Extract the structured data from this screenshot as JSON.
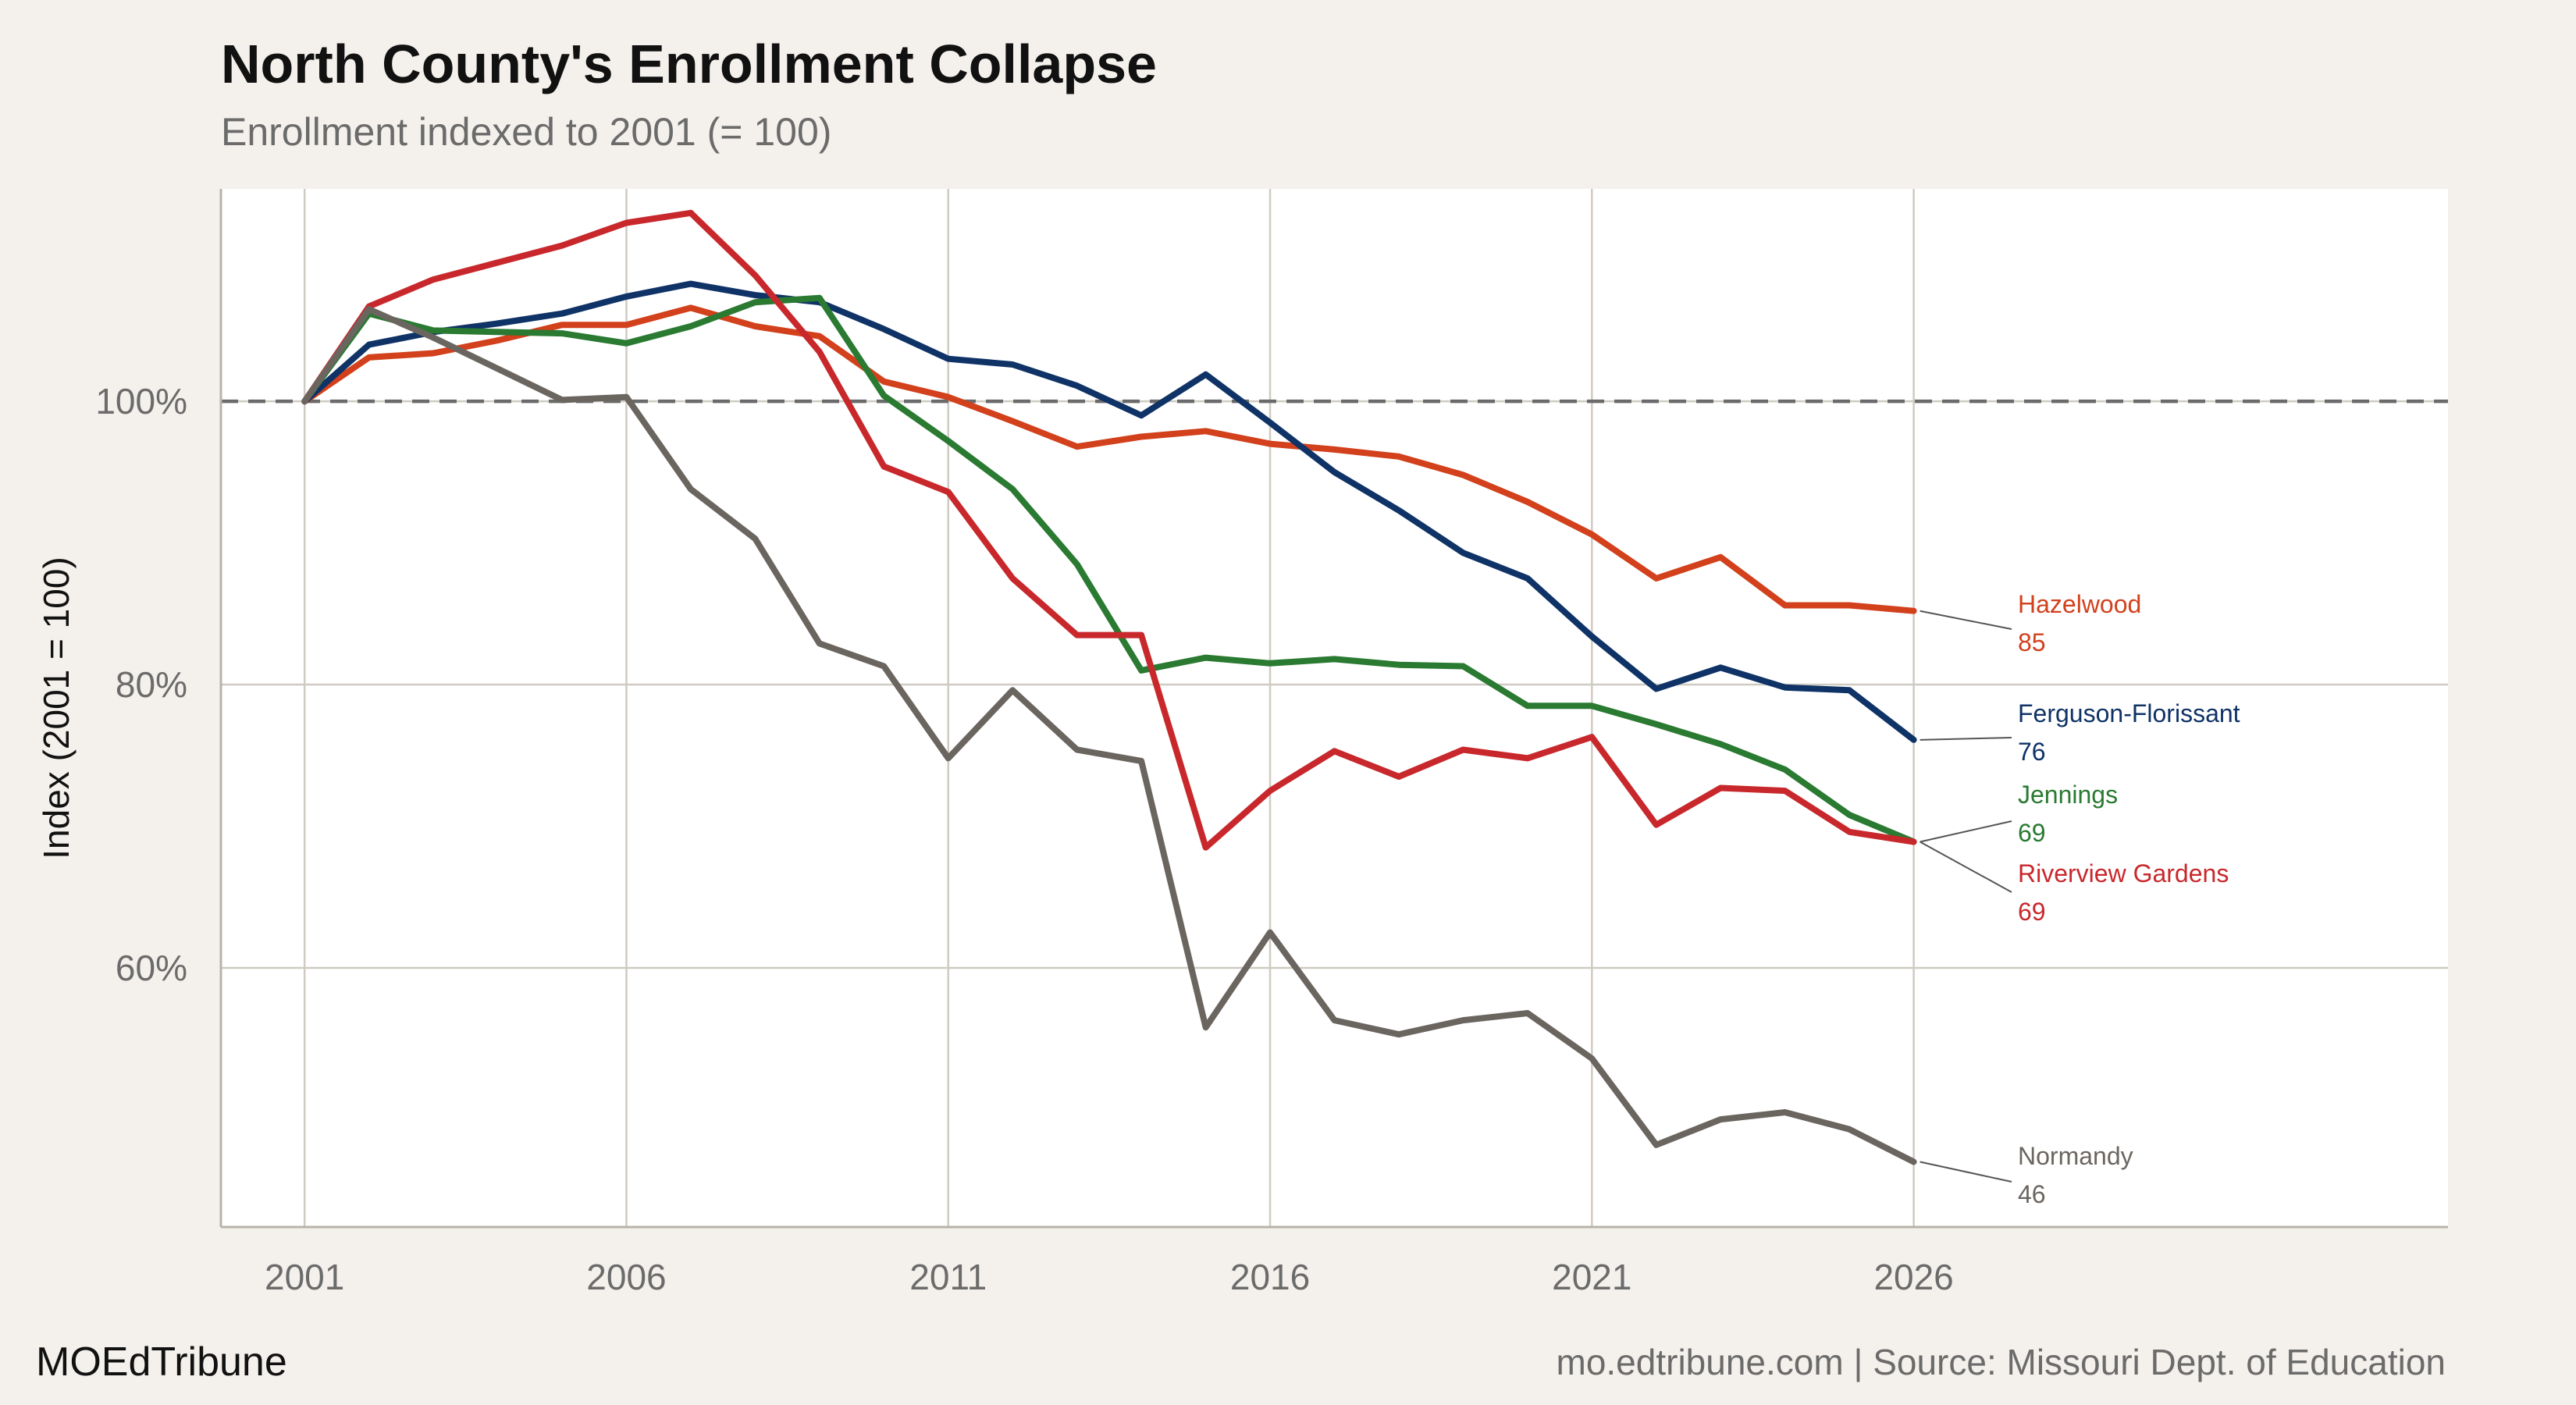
{
  "brand": "MOEdTribune",
  "source_note": "mo.edtribune.com | Source: Missouri Dept. of Education",
  "colors": {
    "background": "#f4f1ec",
    "panel": "#ffffff",
    "grid": "#cfcbc2",
    "axis_text": "#6b6b6b",
    "reference_line": "#6b6b6b"
  },
  "chart_data": {
    "type": "line",
    "title": "North County's Enrollment Collapse",
    "subtitle": "Enrollment indexed to 2001 (= 100)",
    "xlabel": "",
    "ylabel": "Index (2001 = 100)",
    "xlim": [
      1999.7,
      2034.3
    ],
    "ylim": [
      41.7,
      115
    ],
    "x_ticks": [
      2001,
      2006,
      2011,
      2016,
      2021,
      2026
    ],
    "x_tick_labels": [
      "2001",
      "2006",
      "2011",
      "2016",
      "2021",
      "2026"
    ],
    "y_ticks": [
      60,
      80,
      100
    ],
    "y_tick_labels": [
      "60%",
      "80%",
      "100%"
    ],
    "grid": true,
    "reference_line": {
      "y": 100,
      "style": "dashed"
    },
    "legend": "direct labels at right end of lines",
    "series": [
      {
        "name": "Hazelwood",
        "end_label": "85",
        "color": "#d2401c",
        "x": [
          2001,
          2002,
          2003,
          2004,
          2005,
          2006,
          2007,
          2008,
          2009,
          2010,
          2011,
          2012,
          2013,
          2014,
          2015,
          2016,
          2017,
          2018,
          2019,
          2020,
          2021,
          2022,
          2023,
          2024,
          2025,
          2026
        ],
        "values": [
          100,
          103.1,
          103.4,
          104.3,
          105.4,
          105.4,
          106.6,
          105.3,
          104.6,
          101.4,
          100.3,
          98.6,
          96.8,
          97.5,
          97.9,
          97.0,
          96.6,
          96.1,
          94.8,
          92.9,
          90.6,
          87.5,
          89.0,
          85.6,
          85.6,
          85.2
        ]
      },
      {
        "name": "Ferguson-Florissant",
        "end_label": "76",
        "color": "#0f3366",
        "x": [
          2001,
          2002,
          2003,
          2004,
          2005,
          2006,
          2007,
          2008,
          2009,
          2010,
          2011,
          2012,
          2013,
          2014,
          2015,
          2016,
          2017,
          2018,
          2019,
          2020,
          2021,
          2022,
          2023,
          2024,
          2025,
          2026
        ],
        "values": [
          100,
          104.0,
          104.9,
          105.5,
          106.2,
          107.4,
          108.3,
          107.5,
          107.0,
          105.1,
          103.0,
          102.6,
          101.1,
          99.0,
          101.9,
          98.5,
          95.0,
          92.3,
          89.3,
          87.5,
          83.4,
          79.7,
          81.2,
          79.8,
          79.6,
          76.1
        ]
      },
      {
        "name": "Jennings",
        "end_label": "69",
        "color": "#2a7a32",
        "x": [
          2001,
          2002,
          2003,
          2004,
          2005,
          2006,
          2007,
          2008,
          2009,
          2010,
          2011,
          2012,
          2013,
          2014,
          2015,
          2016,
          2017,
          2018,
          2019,
          2020,
          2021,
          2022,
          2023,
          2024,
          2025,
          2026
        ],
        "values": [
          100,
          106.2,
          105.0,
          104.9,
          104.8,
          104.1,
          105.3,
          107.0,
          107.3,
          100.4,
          97.2,
          93.8,
          88.5,
          81.0,
          81.9,
          81.5,
          81.8,
          81.4,
          81.3,
          78.5,
          78.5,
          77.2,
          75.8,
          74.0,
          70.8,
          68.9
        ]
      },
      {
        "name": "Riverview Gardens",
        "end_label": "69",
        "color": "#c8282c",
        "x": [
          2001,
          2002,
          2003,
          2004,
          2005,
          2006,
          2007,
          2008,
          2009,
          2010,
          2011,
          2012,
          2013,
          2014,
          2015,
          2016,
          2017,
          2018,
          2019,
          2020,
          2021,
          2022,
          2023,
          2024,
          2025,
          2026
        ],
        "values": [
          100,
          106.7,
          108.6,
          109.8,
          111.0,
          112.6,
          113.3,
          108.9,
          103.5,
          95.4,
          93.6,
          87.5,
          83.5,
          83.5,
          68.5,
          72.5,
          75.3,
          73.5,
          75.4,
          74.8,
          76.3,
          70.1,
          72.7,
          72.5,
          69.6,
          68.9
        ]
      },
      {
        "name": "Normandy",
        "end_label": "46",
        "color": "#6b6560",
        "x": [
          2001,
          2002,
          2003,
          2004,
          2005,
          2006,
          2007,
          2008,
          2009,
          2010,
          2011,
          2012,
          2013,
          2014,
          2015,
          2016,
          2017,
          2018,
          2019,
          2020,
          2021,
          2022,
          2023,
          2024,
          2025,
          2026
        ],
        "values": [
          100,
          106.5,
          104.5,
          102.3,
          100.1,
          100.3,
          93.8,
          90.3,
          82.9,
          81.3,
          74.8,
          79.6,
          75.4,
          74.6,
          55.8,
          62.5,
          56.3,
          55.3,
          56.3,
          56.8,
          53.6,
          47.5,
          49.3,
          49.8,
          48.6,
          46.3
        ]
      }
    ]
  }
}
